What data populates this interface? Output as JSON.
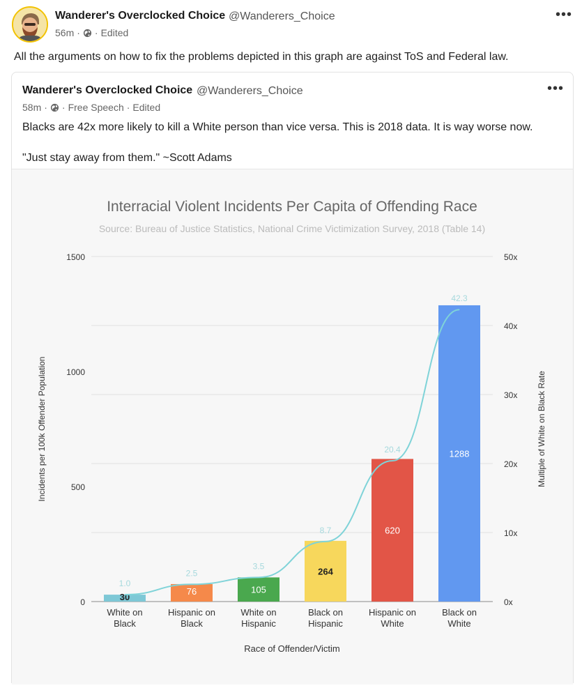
{
  "post": {
    "author_name": "Wanderer's Overclocked Choice",
    "author_handle": "@Wanderers_Choice",
    "time": "56m",
    "dot1": "·",
    "dot2": "·",
    "edited": "Edited",
    "more": "•••",
    "text": "All the arguments on how to fix the problems depicted in this graph are against ToS and Federal law."
  },
  "quote": {
    "author_name": "Wanderer's Overclocked Choice",
    "author_handle": "@Wanderers_Choice",
    "time": "58m",
    "dot1": "·",
    "dot2": "·",
    "category": "Free Speech",
    "dot3": "·",
    "edited": "Edited",
    "more": "•••",
    "text1": "Blacks are 42x more likely to kill a White person than vice versa. This is 2018 data. It is way worse now.",
    "text2": "\"Just stay away from them.\" ~Scott Adams"
  },
  "chart_data": {
    "type": "bar",
    "title": "Interracial Violent Incidents Per Capita of Offending Race",
    "subtitle": "Source: Bureau of Justice Statistics, National Crime Victimization Survey, 2018 (Table 14)",
    "xlabel": "Race of Offender/Victim",
    "ylabel": "Incidents per 100k Offender Population",
    "y2label": "Multiple of White on Black Rate",
    "categories": [
      [
        "White on",
        "Black"
      ],
      [
        "Hispanic on",
        "Black"
      ],
      [
        "White on",
        "Hispanic"
      ],
      [
        "Black on",
        "Hispanic"
      ],
      [
        "Hispanic on",
        "White"
      ],
      [
        "Black on",
        "White"
      ]
    ],
    "values": [
      30,
      76,
      105,
      264,
      620,
      1288
    ],
    "value_labels": [
      "30",
      "76",
      "105",
      "264",
      "620",
      "1288"
    ],
    "multiples": [
      1.0,
      2.5,
      3.5,
      8.7,
      20.4,
      42.3
    ],
    "multiple_labels": [
      "1.0",
      "2.5",
      "3.5",
      "8.7",
      "20.4",
      "42.3"
    ],
    "colors": [
      "#7ec8d6",
      "#f5894a",
      "#4aa84e",
      "#f7d75c",
      "#e25547",
      "#6198f0"
    ],
    "line_color": "#7fd3d8",
    "ylim": [
      0,
      1500
    ],
    "yticks": [
      "0",
      "500",
      "1000",
      "1500"
    ],
    "y2lim": [
      0,
      50
    ],
    "y2ticks": [
      "0x",
      "10x",
      "20x",
      "30x",
      "40x",
      "50x"
    ],
    "grid": true
  }
}
